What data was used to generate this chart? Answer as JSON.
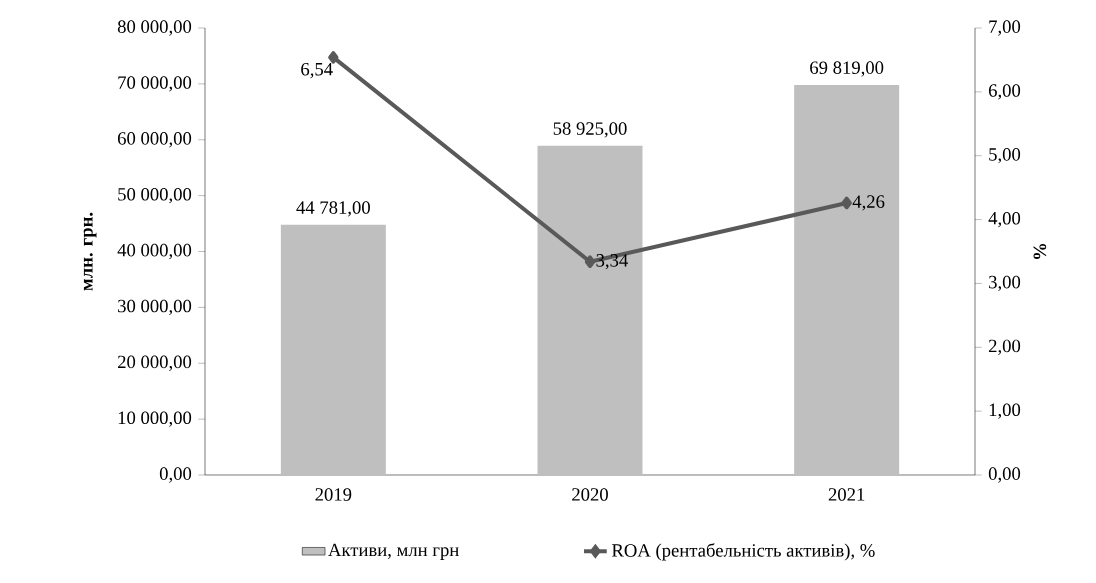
{
  "chart_data": {
    "type": "bar",
    "categories": [
      "2019",
      "2020",
      "2021"
    ],
    "ylabel": "млн. грн.",
    "y2label": "%",
    "series": [
      {
        "name": "Активи, млн грн",
        "color": "#bfbfbf",
        "values": [
          44781,
          58925,
          69819
        ],
        "value_labels": [
          "44 781,00",
          "58 925,00",
          "69 819,00"
        ]
      },
      {
        "name": "ROA (рентабельність активів), %",
        "type": "line",
        "axis": "y2",
        "color": "#595959",
        "marker": "diamond",
        "values": [
          6.54,
          3.34,
          4.26
        ],
        "value_labels": [
          "6,54",
          "3,34",
          "4,26"
        ]
      }
    ],
    "ylim": [
      0,
      80000
    ],
    "yticks": [
      {
        "value": 0,
        "label": "0,00"
      },
      {
        "value": 10000,
        "label": "10 000,00"
      },
      {
        "value": 20000,
        "label": "20 000,00"
      },
      {
        "value": 30000,
        "label": "30 000,00"
      },
      {
        "value": 40000,
        "label": "40 000,00"
      },
      {
        "value": 50000,
        "label": "50 000,00"
      },
      {
        "value": 60000,
        "label": "60 000,00"
      },
      {
        "value": 70000,
        "label": "70 000,00"
      },
      {
        "value": 80000,
        "label": "80 000,00"
      }
    ],
    "y2lim": [
      0,
      7
    ],
    "y2ticks": [
      {
        "value": 0,
        "label": "0,00"
      },
      {
        "value": 1,
        "label": "1,00"
      },
      {
        "value": 2,
        "label": "2,00"
      },
      {
        "value": 3,
        "label": "3,00"
      },
      {
        "value": 4,
        "label": "4,00"
      },
      {
        "value": 5,
        "label": "5,00"
      },
      {
        "value": 6,
        "label": "6,00"
      },
      {
        "value": 7,
        "label": "7,00"
      }
    ],
    "grid": false,
    "legend": "bottom"
  }
}
